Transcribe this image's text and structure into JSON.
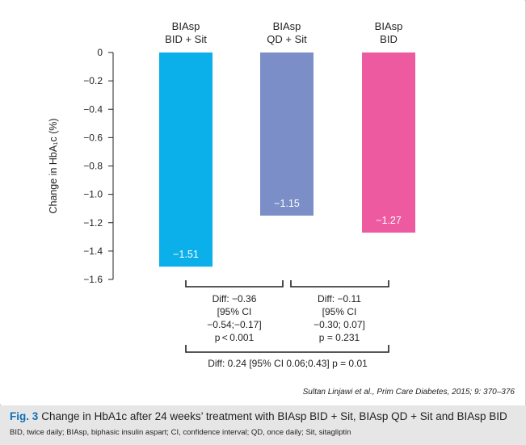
{
  "chart_data": {
    "type": "bar",
    "categories": [
      [
        "BIAsp",
        "BID + Sit"
      ],
      [
        "BIAsp",
        "QD + Sit"
      ],
      [
        "BIAsp",
        "BID"
      ]
    ],
    "values": [
      -1.51,
      -1.15,
      -1.27
    ],
    "value_labels": [
      "−1.51",
      "−1.15",
      "−1.27"
    ],
    "colors": [
      "#0bb0ea",
      "#7b8ec7",
      "#ee5aa0"
    ],
    "ylabel": "Change in HbA₁c (%)",
    "ylim": [
      -1.6,
      0
    ],
    "yticks": [
      0,
      -0.2,
      -0.4,
      -0.6,
      -0.8,
      -1.0,
      -1.2,
      -1.4,
      -1.6
    ],
    "ytick_labels": [
      "0",
      "−0.2",
      "−0.4",
      "−0.6",
      "−0.8",
      "−1.0",
      "−1.2",
      "−1.4",
      "−1.6"
    ],
    "grid": false,
    "comparisons": [
      {
        "between": [
          0,
          1
        ],
        "lines": [
          "Diff: −0.36",
          "[95% CI",
          "−0.54;−0.17]",
          "p < 0.001"
        ]
      },
      {
        "between": [
          1,
          2
        ],
        "lines": [
          "Diff: −0.11",
          "[95% CI",
          "−0.30; 0.07]",
          "p = 0.231"
        ]
      },
      {
        "between": [
          0,
          2
        ],
        "lines": [
          "Diff: 0.24 [95% CI 0.06;0.43] p = 0.01"
        ]
      }
    ]
  },
  "citation": "Sultan Linjawi et al., Prim Care Diabetes, 2015; 9: 370–376",
  "caption": {
    "fig_label": "Fig. 3",
    "title": "Change in HbA1c after 24 weeks’ treatment with BIAsp BID + Sit, BIAsp QD + Sit and BIAsp BID",
    "footnote": "BID, twice daily; BIAsp, biphasic insulin aspart; CI, confidence interval; QD, once daily; Sit, sitagliptin"
  }
}
